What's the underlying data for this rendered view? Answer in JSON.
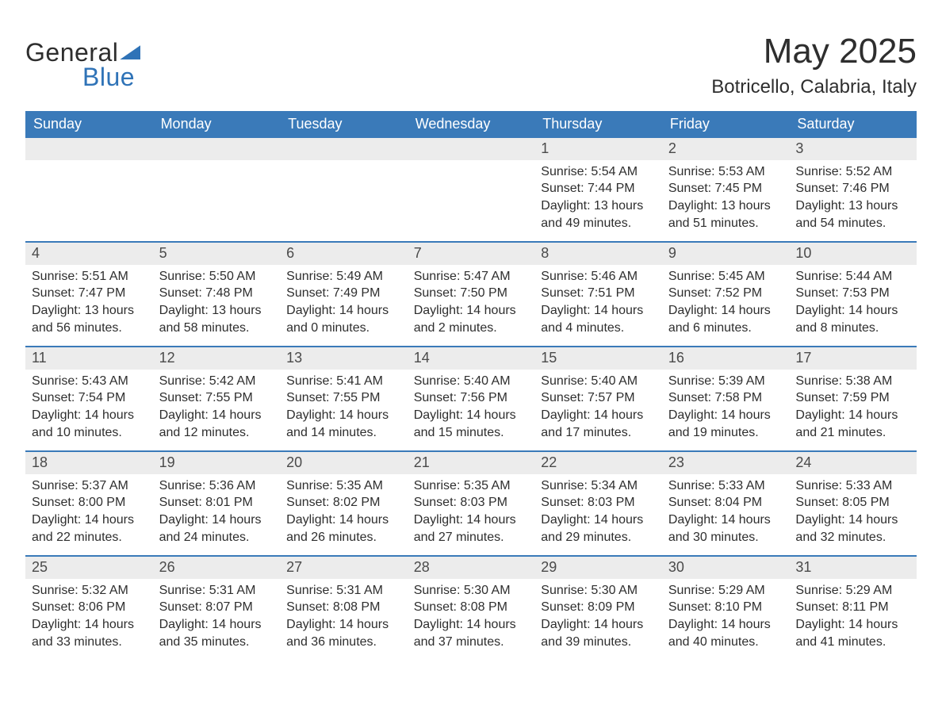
{
  "brand": {
    "word1": "General",
    "word2": "Blue"
  },
  "title": "May 2025",
  "location": "Botricello, Calabria, Italy",
  "colors": {
    "header_bg": "#3a7ab9",
    "header_text": "#ffffff",
    "week_divider": "#3a7ab9",
    "daynum_bg": "#ececec",
    "daynum_text": "#4a4a4a",
    "body_text": "#2e2e2e",
    "brand_accent": "#2f73b7",
    "page_bg": "#ffffff"
  },
  "layout": {
    "columns": 7,
    "rows": 5,
    "title_fontsize": 44,
    "location_fontsize": 24,
    "header_fontsize": 18,
    "daynum_fontsize": 18,
    "body_fontsize": 16
  },
  "weekdays": [
    "Sunday",
    "Monday",
    "Tuesday",
    "Wednesday",
    "Thursday",
    "Friday",
    "Saturday"
  ],
  "weeks": [
    [
      null,
      null,
      null,
      null,
      {
        "day": "1",
        "sunrise": "Sunrise: 5:54 AM",
        "sunset": "Sunset: 7:44 PM",
        "daylight1": "Daylight: 13 hours",
        "daylight2": "and 49 minutes."
      },
      {
        "day": "2",
        "sunrise": "Sunrise: 5:53 AM",
        "sunset": "Sunset: 7:45 PM",
        "daylight1": "Daylight: 13 hours",
        "daylight2": "and 51 minutes."
      },
      {
        "day": "3",
        "sunrise": "Sunrise: 5:52 AM",
        "sunset": "Sunset: 7:46 PM",
        "daylight1": "Daylight: 13 hours",
        "daylight2": "and 54 minutes."
      }
    ],
    [
      {
        "day": "4",
        "sunrise": "Sunrise: 5:51 AM",
        "sunset": "Sunset: 7:47 PM",
        "daylight1": "Daylight: 13 hours",
        "daylight2": "and 56 minutes."
      },
      {
        "day": "5",
        "sunrise": "Sunrise: 5:50 AM",
        "sunset": "Sunset: 7:48 PM",
        "daylight1": "Daylight: 13 hours",
        "daylight2": "and 58 minutes."
      },
      {
        "day": "6",
        "sunrise": "Sunrise: 5:49 AM",
        "sunset": "Sunset: 7:49 PM",
        "daylight1": "Daylight: 14 hours",
        "daylight2": "and 0 minutes."
      },
      {
        "day": "7",
        "sunrise": "Sunrise: 5:47 AM",
        "sunset": "Sunset: 7:50 PM",
        "daylight1": "Daylight: 14 hours",
        "daylight2": "and 2 minutes."
      },
      {
        "day": "8",
        "sunrise": "Sunrise: 5:46 AM",
        "sunset": "Sunset: 7:51 PM",
        "daylight1": "Daylight: 14 hours",
        "daylight2": "and 4 minutes."
      },
      {
        "day": "9",
        "sunrise": "Sunrise: 5:45 AM",
        "sunset": "Sunset: 7:52 PM",
        "daylight1": "Daylight: 14 hours",
        "daylight2": "and 6 minutes."
      },
      {
        "day": "10",
        "sunrise": "Sunrise: 5:44 AM",
        "sunset": "Sunset: 7:53 PM",
        "daylight1": "Daylight: 14 hours",
        "daylight2": "and 8 minutes."
      }
    ],
    [
      {
        "day": "11",
        "sunrise": "Sunrise: 5:43 AM",
        "sunset": "Sunset: 7:54 PM",
        "daylight1": "Daylight: 14 hours",
        "daylight2": "and 10 minutes."
      },
      {
        "day": "12",
        "sunrise": "Sunrise: 5:42 AM",
        "sunset": "Sunset: 7:55 PM",
        "daylight1": "Daylight: 14 hours",
        "daylight2": "and 12 minutes."
      },
      {
        "day": "13",
        "sunrise": "Sunrise: 5:41 AM",
        "sunset": "Sunset: 7:55 PM",
        "daylight1": "Daylight: 14 hours",
        "daylight2": "and 14 minutes."
      },
      {
        "day": "14",
        "sunrise": "Sunrise: 5:40 AM",
        "sunset": "Sunset: 7:56 PM",
        "daylight1": "Daylight: 14 hours",
        "daylight2": "and 15 minutes."
      },
      {
        "day": "15",
        "sunrise": "Sunrise: 5:40 AM",
        "sunset": "Sunset: 7:57 PM",
        "daylight1": "Daylight: 14 hours",
        "daylight2": "and 17 minutes."
      },
      {
        "day": "16",
        "sunrise": "Sunrise: 5:39 AM",
        "sunset": "Sunset: 7:58 PM",
        "daylight1": "Daylight: 14 hours",
        "daylight2": "and 19 minutes."
      },
      {
        "day": "17",
        "sunrise": "Sunrise: 5:38 AM",
        "sunset": "Sunset: 7:59 PM",
        "daylight1": "Daylight: 14 hours",
        "daylight2": "and 21 minutes."
      }
    ],
    [
      {
        "day": "18",
        "sunrise": "Sunrise: 5:37 AM",
        "sunset": "Sunset: 8:00 PM",
        "daylight1": "Daylight: 14 hours",
        "daylight2": "and 22 minutes."
      },
      {
        "day": "19",
        "sunrise": "Sunrise: 5:36 AM",
        "sunset": "Sunset: 8:01 PM",
        "daylight1": "Daylight: 14 hours",
        "daylight2": "and 24 minutes."
      },
      {
        "day": "20",
        "sunrise": "Sunrise: 5:35 AM",
        "sunset": "Sunset: 8:02 PM",
        "daylight1": "Daylight: 14 hours",
        "daylight2": "and 26 minutes."
      },
      {
        "day": "21",
        "sunrise": "Sunrise: 5:35 AM",
        "sunset": "Sunset: 8:03 PM",
        "daylight1": "Daylight: 14 hours",
        "daylight2": "and 27 minutes."
      },
      {
        "day": "22",
        "sunrise": "Sunrise: 5:34 AM",
        "sunset": "Sunset: 8:03 PM",
        "daylight1": "Daylight: 14 hours",
        "daylight2": "and 29 minutes."
      },
      {
        "day": "23",
        "sunrise": "Sunrise: 5:33 AM",
        "sunset": "Sunset: 8:04 PM",
        "daylight1": "Daylight: 14 hours",
        "daylight2": "and 30 minutes."
      },
      {
        "day": "24",
        "sunrise": "Sunrise: 5:33 AM",
        "sunset": "Sunset: 8:05 PM",
        "daylight1": "Daylight: 14 hours",
        "daylight2": "and 32 minutes."
      }
    ],
    [
      {
        "day": "25",
        "sunrise": "Sunrise: 5:32 AM",
        "sunset": "Sunset: 8:06 PM",
        "daylight1": "Daylight: 14 hours",
        "daylight2": "and 33 minutes."
      },
      {
        "day": "26",
        "sunrise": "Sunrise: 5:31 AM",
        "sunset": "Sunset: 8:07 PM",
        "daylight1": "Daylight: 14 hours",
        "daylight2": "and 35 minutes."
      },
      {
        "day": "27",
        "sunrise": "Sunrise: 5:31 AM",
        "sunset": "Sunset: 8:08 PM",
        "daylight1": "Daylight: 14 hours",
        "daylight2": "and 36 minutes."
      },
      {
        "day": "28",
        "sunrise": "Sunrise: 5:30 AM",
        "sunset": "Sunset: 8:08 PM",
        "daylight1": "Daylight: 14 hours",
        "daylight2": "and 37 minutes."
      },
      {
        "day": "29",
        "sunrise": "Sunrise: 5:30 AM",
        "sunset": "Sunset: 8:09 PM",
        "daylight1": "Daylight: 14 hours",
        "daylight2": "and 39 minutes."
      },
      {
        "day": "30",
        "sunrise": "Sunrise: 5:29 AM",
        "sunset": "Sunset: 8:10 PM",
        "daylight1": "Daylight: 14 hours",
        "daylight2": "and 40 minutes."
      },
      {
        "day": "31",
        "sunrise": "Sunrise: 5:29 AM",
        "sunset": "Sunset: 8:11 PM",
        "daylight1": "Daylight: 14 hours",
        "daylight2": "and 41 minutes."
      }
    ]
  ]
}
